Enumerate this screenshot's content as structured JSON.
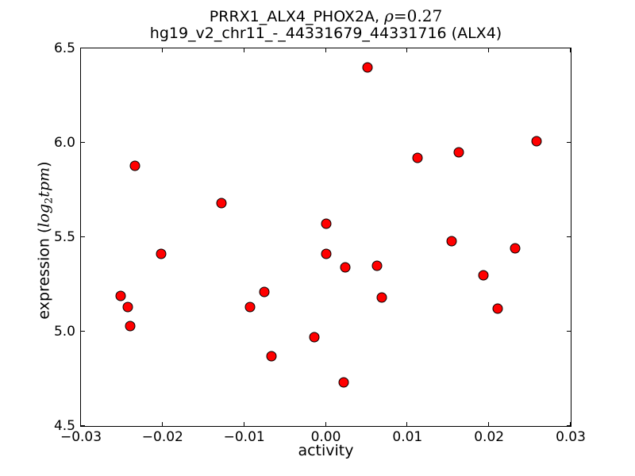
{
  "title": {
    "line1_prefix": "PRRX1_ALX4_PHOX2A, ",
    "line1_rho": "ρ",
    "line1_value": "=0.27",
    "line2": "hg19_v2_chr11_-_44331679_44331716 (ALX4)"
  },
  "axes": {
    "xlabel": "activity",
    "ylabel_prefix": "expression (",
    "ylabel_log": "log",
    "ylabel_sub": "2",
    "ylabel_tpm": "tpm",
    "ylabel_suffix": ")"
  },
  "chart_data": {
    "type": "scatter",
    "title": "PRRX1_ALX4_PHOX2A, ρ=0.27",
    "subtitle": "hg19_v2_chr11_-_44331679_44331716 (ALX4)",
    "xlabel": "activity",
    "ylabel": "expression (log2 tpm)",
    "rho": 0.27,
    "xlim": [
      -0.03,
      0.03
    ],
    "ylim": [
      4.5,
      6.5
    ],
    "grid": false,
    "legend": false,
    "xticks": {
      "values": [
        -0.03,
        -0.02,
        -0.01,
        0.0,
        0.01,
        0.02,
        0.03
      ],
      "labels": [
        "−0.03",
        "−0.02",
        "−0.01",
        "0.00",
        "0.01",
        "0.02",
        "0.03"
      ]
    },
    "yticks": {
      "values": [
        4.5,
        5.0,
        5.5,
        6.0,
        6.5
      ],
      "labels": [
        "4.5",
        "5.0",
        "5.5",
        "6.0",
        "6.5"
      ]
    },
    "marker": {
      "shape": "circle",
      "fill_color": "#ff0000",
      "edge_color": "#000000"
    },
    "points": [
      [
        -0.0234,
        5.88
      ],
      [
        -0.0128,
        5.68
      ],
      [
        -0.0202,
        5.41
      ],
      [
        -0.0251,
        5.19
      ],
      [
        -0.0243,
        5.13
      ],
      [
        -0.024,
        5.03
      ],
      [
        -0.0093,
        5.13
      ],
      [
        -0.0075,
        5.21
      ],
      [
        -0.0067,
        4.87
      ],
      [
        -0.0014,
        4.97
      ],
      [
        0.0,
        5.57
      ],
      [
        0.0,
        5.41
      ],
      [
        0.0022,
        4.73
      ],
      [
        0.0024,
        5.34
      ],
      [
        0.0051,
        6.4
      ],
      [
        0.0063,
        5.35
      ],
      [
        0.0069,
        5.18
      ],
      [
        0.0112,
        5.92
      ],
      [
        0.0154,
        5.48
      ],
      [
        0.0163,
        5.95
      ],
      [
        0.0193,
        5.3
      ],
      [
        0.0211,
        5.12
      ],
      [
        0.0232,
        5.44
      ],
      [
        0.0258,
        6.01
      ]
    ]
  }
}
